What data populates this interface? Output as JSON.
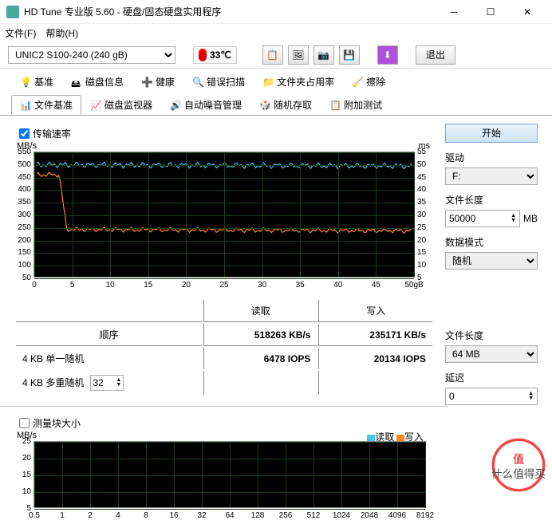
{
  "window": {
    "title": "HD Tune 专业版 5.60 - 硬盘/固态硬盘实用程序"
  },
  "menu": {
    "file": "文件(F)",
    "help": "帮助(H)"
  },
  "toolbar": {
    "drive": "UNIC2 S100-240 (240 gB)",
    "temp": "33℃",
    "exit": "退出"
  },
  "tabs": {
    "row1": [
      "基准",
      "磁盘信息",
      "健康",
      "错误扫描",
      "文件夹占用率",
      "擦除"
    ],
    "row2": [
      "文件基准",
      "磁盘监视器",
      "自动噪音管理",
      "随机存取",
      "附加测试"
    ],
    "active": "文件基准"
  },
  "check1": "传输速率",
  "chart1": {
    "ylabel": "MB/s",
    "yrlabel": "ms",
    "xunit": "gB",
    "ymax": 550,
    "ymin": 50,
    "ystep": 50,
    "yrmax": 55,
    "yrmin": 5,
    "yrstep": 5,
    "xmax": 50,
    "xstep": 5,
    "read_color": "#3fc9e6",
    "write_color": "#ff8c1a",
    "bg": "#000000",
    "grid": "#1a3a1a",
    "read": [
      [
        0,
        500
      ],
      [
        50,
        495
      ]
    ],
    "write": [
      [
        0,
        460
      ],
      [
        3,
        460
      ],
      [
        4,
        240
      ],
      [
        50,
        235
      ]
    ]
  },
  "table": {
    "h1": "读取",
    "h2": "写入",
    "rows": [
      {
        "l": "顺序",
        "r": "518263 KB/s",
        "w": "235171 KB/s"
      },
      {
        "l": "4 KB 单一随机",
        "r": "6478 IOPS",
        "w": "20134 IOPS"
      },
      {
        "l": "4 KB 多重随机",
        "r": "",
        "w": "",
        "spin": "32"
      }
    ]
  },
  "panel": {
    "start": "开始",
    "drive_l": "驱动",
    "drive_v": "F:",
    "flen_l": "文件长度",
    "flen_v": "50000",
    "flen_u": "MB",
    "mode_l": "数据模式",
    "mode_v": "随机",
    "flen2_l": "文件长度",
    "flen2_v": "64 MB",
    "delay_l": "延迟",
    "delay_v": "0"
  },
  "check2": "测量块大小",
  "chart2": {
    "ylabel": "MB/s",
    "ymax": 25,
    "ymin": 5,
    "ystep": 5,
    "xticks": [
      "0.5",
      "1",
      "2",
      "4",
      "8",
      "16",
      "32",
      "64",
      "128",
      "256",
      "512",
      "1024",
      "2048",
      "4096",
      "8192"
    ],
    "legend_r": "读取",
    "legend_w": "写入",
    "rc": "#3fc9e6",
    "wc": "#ff8c1a"
  },
  "watermark": "值 · 什么值得买"
}
